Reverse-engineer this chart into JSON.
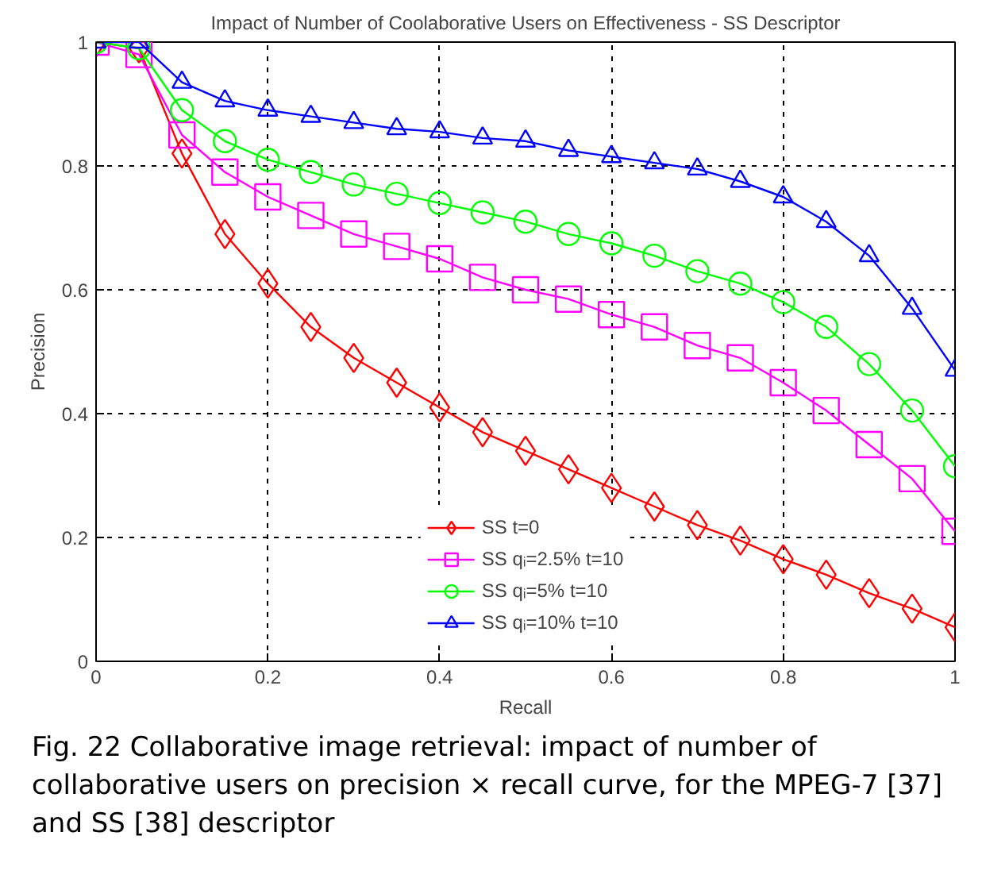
{
  "chart_data": {
    "type": "line",
    "title": "Impact of Number of Coolaborative Users on Effectiveness - SS Descriptor",
    "xlabel": "Recall",
    "ylabel": "Precision",
    "x": [
      0,
      0.05,
      0.1,
      0.15,
      0.2,
      0.25,
      0.3,
      0.35,
      0.4,
      0.45,
      0.5,
      0.55,
      0.6,
      0.65,
      0.7,
      0.75,
      0.8,
      0.85,
      0.9,
      0.95,
      1
    ],
    "series": [
      {
        "name": "SS t=0",
        "color": "#ff0000",
        "marker": "diamond",
        "values": [
          1,
          0.99,
          0.82,
          0.69,
          0.61,
          0.54,
          0.49,
          0.45,
          0.41,
          0.37,
          0.34,
          0.31,
          0.28,
          0.25,
          0.22,
          0.195,
          0.165,
          0.14,
          0.11,
          0.085,
          0.055
        ]
      },
      {
        "name": "SS qᵢ=2.5% t=10",
        "color": "#ff00ff",
        "marker": "square",
        "values": [
          1,
          0.98,
          0.85,
          0.79,
          0.75,
          0.72,
          0.69,
          0.67,
          0.65,
          0.62,
          0.6,
          0.585,
          0.56,
          0.54,
          0.51,
          0.49,
          0.45,
          0.405,
          0.35,
          0.295,
          0.21
        ]
      },
      {
        "name": "SS qᵢ=5% t=10",
        "color": "#00ff00",
        "marker": "circle",
        "values": [
          1,
          0.99,
          0.89,
          0.84,
          0.81,
          0.79,
          0.77,
          0.755,
          0.74,
          0.725,
          0.71,
          0.69,
          0.675,
          0.655,
          0.63,
          0.61,
          0.58,
          0.54,
          0.48,
          0.405,
          0.315
        ]
      },
      {
        "name": "SS qᵢ=10% t=10",
        "color": "#0000ff",
        "marker": "triangle",
        "values": [
          1,
          1,
          0.935,
          0.905,
          0.89,
          0.88,
          0.87,
          0.86,
          0.855,
          0.845,
          0.84,
          0.825,
          0.815,
          0.805,
          0.795,
          0.775,
          0.75,
          0.71,
          0.655,
          0.57,
          0.47
        ]
      }
    ],
    "xlim": [
      0,
      1
    ],
    "ylim": [
      0,
      1
    ],
    "xticks": [
      0,
      0.2,
      0.4,
      0.6,
      0.8,
      1
    ],
    "yticks": [
      0,
      0.2,
      0.4,
      0.6,
      0.8,
      1
    ],
    "grid": true,
    "legend": "bottom",
    "line_style": "solid",
    "annotations": [
      "Fig. 22 Collaborative image retrieval: impact of number of collaborative users on precision × recall curve, for the MPEG-7 [37] and SS [38] descriptor"
    ]
  }
}
